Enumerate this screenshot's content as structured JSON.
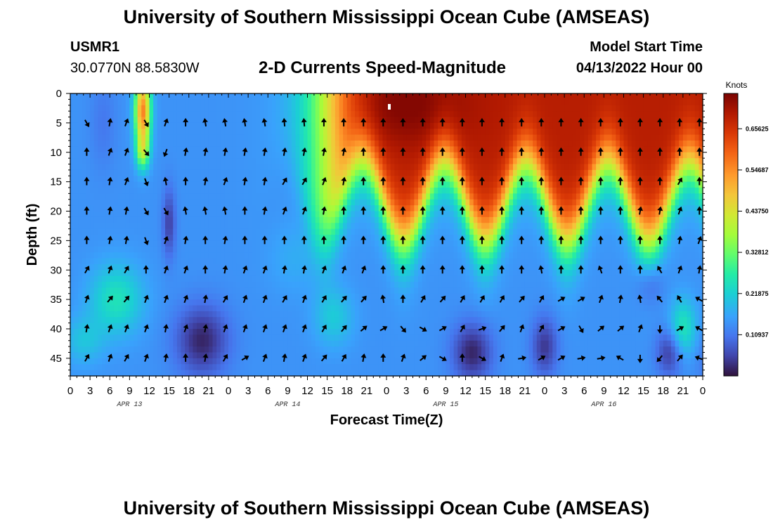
{
  "header": {
    "title": "University of Southern Mississippi Ocean Cube (AMSEAS)",
    "station_id": "USMR1",
    "station_coords": "30.0770N  88.5830W",
    "subtitle": "2-D Currents Speed-Magnitude",
    "model_start_label": "Model Start Time",
    "model_start_value": "04/13/2022 Hour 00"
  },
  "footer": {
    "title": "University of Southern Mississippi Ocean Cube (AMSEAS)"
  },
  "chart_data": {
    "type": "heatmap",
    "title": "2-D Currents Speed-Magnitude",
    "xlabel": "Forecast Time(Z)",
    "ylabel": "Depth (ft)",
    "x_range_hours": [
      0,
      96
    ],
    "x_tick_labels": [
      "0",
      "3",
      "6",
      "9",
      "12",
      "15",
      "18",
      "21",
      "0",
      "3",
      "6",
      "9",
      "12",
      "15",
      "18",
      "21",
      "0",
      "3",
      "6",
      "9",
      "12",
      "15",
      "18",
      "21",
      "0",
      "3",
      "6",
      "9",
      "12",
      "15",
      "18",
      "21",
      "0"
    ],
    "day_labels": [
      "APR 13",
      "APR 14",
      "APR 15",
      "APR 16"
    ],
    "y_range_ft": [
      0,
      48
    ],
    "y_ticks": [
      "0",
      "5",
      "10",
      "15",
      "20",
      "25",
      "30",
      "35",
      "40",
      "45"
    ],
    "colorbar": {
      "unit": "Knots",
      "range": [
        0,
        0.75
      ],
      "tick_labels": [
        "0.65625",
        "0.54687",
        "0.43750",
        "0.32812",
        "0.21875",
        "0.10937"
      ],
      "tick_values": [
        0.65625,
        0.546875,
        0.4375,
        0.328125,
        0.21875,
        0.109375
      ]
    },
    "arrow_times_hours": [
      2.5,
      6,
      8.5,
      11.5,
      14.5,
      17.5,
      20.5,
      23.5,
      26.5,
      29.5,
      32.5,
      35.5,
      38.5,
      41.5,
      44.5,
      47.5,
      50.5,
      53.5,
      56.5,
      59.5,
      62.5,
      65.5,
      68.5,
      71.5,
      74.5,
      77.5,
      80.5,
      83.5,
      86.5,
      89.5,
      92.5,
      95.5
    ],
    "arrow_depths_ft": [
      5,
      10,
      15,
      20,
      25,
      30,
      35,
      40,
      45
    ],
    "arrow_directions_deg": [
      [
        330,
        190,
        200,
        330,
        200,
        180,
        170,
        170,
        170,
        170,
        175,
        175,
        180,
        180,
        180,
        180,
        180,
        180,
        180,
        180,
        180,
        180,
        180,
        180,
        180,
        180,
        180,
        180,
        180,
        180,
        180,
        180
      ],
      [
        180,
        200,
        200,
        320,
        20,
        190,
        190,
        190,
        190,
        190,
        190,
        190,
        190,
        190,
        180,
        180,
        180,
        180,
        180,
        180,
        180,
        180,
        180,
        180,
        180,
        180,
        180,
        180,
        180,
        180,
        180,
        180
      ],
      [
        180,
        190,
        200,
        340,
        170,
        180,
        190,
        200,
        190,
        190,
        210,
        210,
        200,
        190,
        180,
        180,
        180,
        180,
        180,
        180,
        180,
        180,
        180,
        180,
        180,
        180,
        180,
        180,
        180,
        180,
        210,
        180
      ],
      [
        180,
        190,
        190,
        330,
        330,
        170,
        170,
        170,
        180,
        190,
        200,
        200,
        190,
        180,
        180,
        180,
        180,
        180,
        180,
        180,
        180,
        180,
        180,
        180,
        180,
        180,
        180,
        180,
        190,
        190,
        200,
        180
      ],
      [
        180,
        190,
        190,
        340,
        200,
        190,
        180,
        190,
        180,
        180,
        180,
        180,
        180,
        180,
        180,
        180,
        180,
        180,
        180,
        180,
        180,
        180,
        180,
        180,
        180,
        180,
        180,
        180,
        180,
        180,
        190,
        200
      ],
      [
        210,
        200,
        210,
        180,
        200,
        200,
        180,
        190,
        200,
        200,
        190,
        190,
        200,
        200,
        200,
        180,
        180,
        180,
        180,
        180,
        180,
        180,
        180,
        170,
        180,
        180,
        160,
        180,
        180,
        150,
        200,
        190
      ],
      [
        200,
        220,
        220,
        200,
        200,
        200,
        190,
        210,
        200,
        200,
        210,
        200,
        210,
        220,
        220,
        170,
        180,
        210,
        220,
        210,
        210,
        210,
        220,
        210,
        240,
        240,
        200,
        190,
        170,
        140,
        150,
        120
      ],
      [
        190,
        200,
        200,
        200,
        190,
        200,
        190,
        200,
        200,
        200,
        200,
        200,
        210,
        220,
        230,
        240,
        320,
        300,
        240,
        210,
        250,
        220,
        200,
        210,
        240,
        330,
        230,
        230,
        200,
        0,
        240,
        120
      ],
      [
        210,
        200,
        210,
        200,
        190,
        180,
        190,
        210,
        240,
        200,
        190,
        200,
        220,
        210,
        190,
        180,
        200,
        230,
        300,
        180,
        300,
        200,
        260,
        240,
        240,
        260,
        260,
        120,
        0,
        40,
        220,
        110
      ]
    ]
  }
}
